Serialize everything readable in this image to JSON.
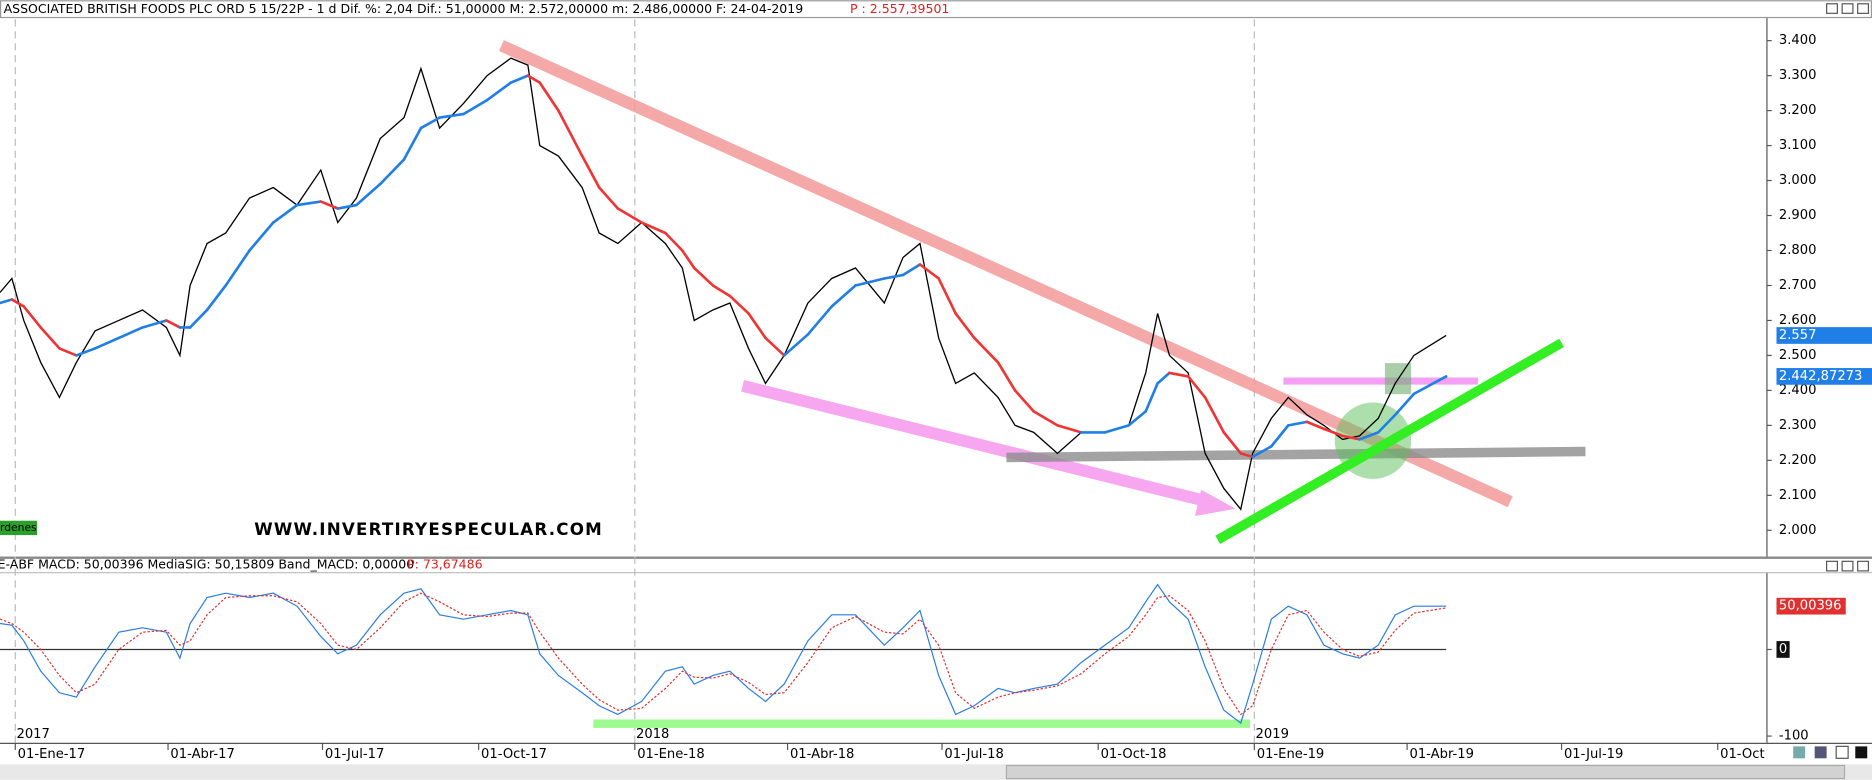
{
  "header": {
    "title": "ASSOCIATED BRITISH FOODS PLC ORD 5 15/22P -   1 d Dif. %: 2,04 Dif.: 51,00000 M: 2.572,00000 m: 2.486,00000 F: 24-04-2019",
    "price": "P : 2.557,39501"
  },
  "chart_data": [
    {
      "type": "line",
      "x": [
        "2016-12-23",
        "2016-12-30",
        "2017-01-06",
        "2017-01-16",
        "2017-01-27",
        "2017-02-06",
        "2017-02-17",
        "2017-03-03",
        "2017-03-17",
        "2017-03-31",
        "2017-04-08",
        "2017-04-14",
        "2017-04-24",
        "2017-05-05",
        "2017-05-19",
        "2017-06-02",
        "2017-06-16",
        "2017-06-30",
        "2017-07-10",
        "2017-07-21",
        "2017-08-04",
        "2017-08-18",
        "2017-08-28",
        "2017-09-08",
        "2017-09-22",
        "2017-10-06",
        "2017-10-20",
        "2017-10-30",
        "2017-11-06",
        "2017-11-17",
        "2017-12-01",
        "2017-12-11",
        "2017-12-22",
        "2018-01-05",
        "2018-01-19",
        "2018-01-29",
        "2018-02-05",
        "2018-02-16",
        "2018-02-26",
        "2018-03-09",
        "2018-03-19",
        "2018-03-30",
        "2018-04-13",
        "2018-04-27",
        "2018-05-11",
        "2018-05-28",
        "2018-06-08",
        "2018-06-18",
        "2018-06-29",
        "2018-07-09",
        "2018-07-20",
        "2018-08-03",
        "2018-08-13",
        "2018-08-24",
        "2018-09-07",
        "2018-09-21",
        "2018-10-05",
        "2018-10-19",
        "2018-10-29",
        "2018-11-05",
        "2018-11-12",
        "2018-11-23",
        "2018-12-03",
        "2018-12-14",
        "2018-12-24",
        "2018-12-31",
        "2019-01-11",
        "2019-01-21",
        "2019-02-01",
        "2019-02-11",
        "2019-02-22",
        "2019-03-04",
        "2019-03-15",
        "2019-03-25",
        "2019-04-05",
        "2019-04-24"
      ],
      "series": [
        {
          "color": "#000000",
          "values": [
            2.68,
            2.72,
            2.6,
            2.48,
            2.38,
            2.48,
            2.57,
            2.6,
            2.63,
            2.58,
            2.5,
            2.7,
            2.82,
            2.85,
            2.95,
            2.98,
            2.93,
            3.03,
            2.88,
            2.95,
            3.12,
            3.18,
            3.32,
            3.15,
            3.22,
            3.3,
            3.35,
            3.33,
            3.1,
            3.07,
            2.98,
            2.85,
            2.82,
            2.88,
            2.82,
            2.75,
            2.6,
            2.63,
            2.65,
            2.52,
            2.42,
            2.5,
            2.65,
            2.72,
            2.75,
            2.65,
            2.78,
            2.82,
            2.55,
            2.42,
            2.45,
            2.38,
            2.3,
            2.28,
            2.22,
            2.28,
            2.28,
            2.3,
            2.45,
            2.62,
            2.5,
            2.45,
            2.22,
            2.12,
            2.06,
            2.22,
            2.32,
            2.38,
            2.33,
            2.3,
            2.26,
            2.27,
            2.32,
            2.42,
            2.5,
            2.557
          ]
        },
        {
          "color": "#1f7fe6",
          "down_color": "#f03434",
          "values": [
            2.65,
            2.66,
            2.64,
            2.58,
            2.52,
            2.5,
            2.52,
            2.55,
            2.58,
            2.6,
            2.58,
            2.58,
            2.63,
            2.7,
            2.8,
            2.88,
            2.93,
            2.94,
            2.92,
            2.93,
            2.99,
            3.06,
            3.15,
            3.18,
            3.19,
            3.23,
            3.28,
            3.3,
            3.28,
            3.2,
            3.07,
            2.98,
            2.92,
            2.88,
            2.85,
            2.8,
            2.75,
            2.7,
            2.67,
            2.62,
            2.55,
            2.5,
            2.56,
            2.64,
            2.7,
            2.72,
            2.73,
            2.76,
            2.72,
            2.62,
            2.55,
            2.48,
            2.4,
            2.34,
            2.3,
            2.28,
            2.28,
            2.3,
            2.34,
            2.42,
            2.45,
            2.44,
            2.38,
            2.28,
            2.22,
            2.21,
            2.24,
            2.3,
            2.31,
            2.29,
            2.27,
            2.26,
            2.28,
            2.33,
            2.39,
            2.44
          ]
        }
      ],
      "last_labels": [
        "2.557",
        "2.442,87273"
      ],
      "xlim": [
        "2016-12-23",
        "2019-10-30"
      ],
      "ylim": [
        1.925,
        3.461
      ],
      "yticks": [
        {
          "value": 2.0,
          "label": "2.000"
        },
        {
          "value": 2.1,
          "label": "2.100"
        },
        {
          "value": 2.2,
          "label": "2.200"
        },
        {
          "value": 2.3,
          "label": "2.300"
        },
        {
          "value": 2.4,
          "label": "2.400"
        },
        {
          "value": 2.5,
          "label": "2.500"
        },
        {
          "value": 2.6,
          "label": "2.600"
        },
        {
          "value": 2.7,
          "label": "2.700"
        },
        {
          "value": 2.8,
          "label": "2.800"
        },
        {
          "value": 2.9,
          "label": "2.900"
        },
        {
          "value": 3.0,
          "label": "3.000"
        },
        {
          "value": 3.1,
          "label": "3.100"
        },
        {
          "value": 3.2,
          "label": "3.200"
        },
        {
          "value": 3.3,
          "label": "3.300"
        },
        {
          "value": 3.4,
          "label": "3.400"
        }
      ],
      "watermark": "WWW.INVERTIRYESPECULAR.COM",
      "badge": "rdenes"
    },
    {
      "type": "line",
      "title": "E-ABF MACD: 50,00396 MediaSIG: 50,15809 Band_MACD: 0,00000",
      "price": "P: 73,67486",
      "series": [
        {
          "color": "#2a7de1",
          "values": [
            30,
            28,
            10,
            -25,
            -50,
            -55,
            -20,
            20,
            25,
            20,
            -10,
            30,
            60,
            65,
            60,
            65,
            50,
            15,
            -5,
            5,
            40,
            65,
            70,
            40,
            35,
            40,
            45,
            40,
            -5,
            -30,
            -50,
            -65,
            -75,
            -60,
            -25,
            -20,
            -40,
            -30,
            -25,
            -45,
            -60,
            -40,
            10,
            40,
            40,
            5,
            25,
            45,
            -30,
            -75,
            -65,
            -45,
            -50,
            -45,
            -40,
            -15,
            5,
            25,
            55,
            75,
            55,
            35,
            -20,
            -70,
            -85,
            -40,
            35,
            50,
            40,
            5,
            -5,
            -10,
            5,
            40,
            50,
            50
          ]
        },
        {
          "color": "#e03030",
          "dash": true,
          "values": [
            35,
            30,
            20,
            0,
            -30,
            -50,
            -40,
            0,
            20,
            22,
            5,
            10,
            40,
            60,
            62,
            62,
            55,
            30,
            5,
            0,
            25,
            55,
            65,
            55,
            40,
            38,
            42,
            42,
            20,
            -10,
            -40,
            -58,
            -70,
            -68,
            -45,
            -25,
            -32,
            -33,
            -28,
            -38,
            -52,
            -50,
            -15,
            25,
            38,
            20,
            18,
            35,
            5,
            -50,
            -68,
            -55,
            -50,
            -47,
            -42,
            -28,
            -5,
            15,
            40,
            60,
            62,
            45,
            10,
            -45,
            -75,
            -65,
            0,
            40,
            45,
            20,
            0,
            -8,
            -3,
            22,
            42,
            48
          ]
        }
      ],
      "last_label": "50,00396",
      "zero_line": true,
      "xlim": [
        "2016-12-23",
        "2019-10-30"
      ],
      "ylim": [
        -105,
        88
      ],
      "yticks": [
        0,
        -100
      ],
      "xticks": [
        {
          "value": "2017-01-01",
          "label": "01-Ene-17"
        },
        {
          "value": "2017-04-01",
          "label": "01-Abr-17"
        },
        {
          "value": "2017-07-01",
          "label": "01-Jul-17"
        },
        {
          "value": "2017-10-01",
          "label": "01-Oct-17"
        },
        {
          "value": "2018-01-01",
          "label": "01-Ene-18"
        },
        {
          "value": "2018-04-01",
          "label": "01-Abr-18"
        },
        {
          "value": "2018-07-01",
          "label": "01-Jul-18"
        },
        {
          "value": "2018-10-01",
          "label": "01-Oct-18"
        },
        {
          "value": "2019-01-01",
          "label": "01-Ene-19"
        },
        {
          "value": "2019-04-01",
          "label": "01-Abr-19"
        },
        {
          "value": "2019-07-01",
          "label": "01-Jul-19"
        },
        {
          "value": "2019-10-01",
          "label": "01-Oct"
        }
      ],
      "year_marks": [
        {
          "value": "2017-01-01",
          "label": "2017"
        },
        {
          "value": "2018-01-01",
          "label": "2018"
        },
        {
          "value": "2019-01-01",
          "label": "2019"
        }
      ]
    }
  ]
}
